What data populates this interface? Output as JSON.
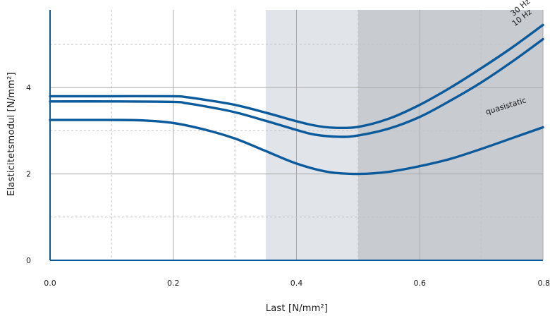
{
  "chart_data": {
    "type": "line",
    "title": "",
    "xlabel": "Last [N/mm²]",
    "ylabel": "Elasticitetsmodul [N/mm²]",
    "xlim": [
      0,
      0.8
    ],
    "ylim": [
      0,
      5.8
    ],
    "x_ticks": [
      0.0,
      0.2,
      0.4,
      0.6,
      0.8
    ],
    "x_tick_labels": [
      "0.0",
      "0.2",
      "0.4",
      "0.6",
      "0.8"
    ],
    "y_ticks": [
      0,
      2,
      4
    ],
    "y_tick_labels": [
      "0",
      "2",
      "4"
    ],
    "minor_x_gridlines": [
      0.1,
      0.3,
      0.5,
      0.7
    ],
    "minor_y_gridlines": [
      1,
      3,
      5
    ],
    "grid": true,
    "shaded_regions": [
      {
        "x_range": [
          0.35,
          0.5
        ],
        "color": "#e1e5ea"
      },
      {
        "x_range": [
          0.5,
          0.8
        ],
        "color": "#c8ccd1"
      }
    ],
    "series": [
      {
        "name": "30 Hz",
        "color": "#0b5a9c",
        "x": [
          0.0,
          0.1,
          0.2,
          0.22,
          0.25,
          0.3,
          0.35,
          0.4,
          0.43,
          0.46,
          0.5,
          0.55,
          0.6,
          0.65,
          0.7,
          0.75,
          0.8
        ],
        "y": [
          3.8,
          3.8,
          3.8,
          3.78,
          3.72,
          3.6,
          3.42,
          3.22,
          3.12,
          3.07,
          3.09,
          3.28,
          3.6,
          4.0,
          4.45,
          4.93,
          5.45
        ]
      },
      {
        "name": "10 Hz",
        "color": "#0b5a9c",
        "x": [
          0.0,
          0.1,
          0.2,
          0.22,
          0.25,
          0.3,
          0.35,
          0.4,
          0.43,
          0.47,
          0.5,
          0.55,
          0.6,
          0.65,
          0.7,
          0.75,
          0.8
        ],
        "y": [
          3.68,
          3.68,
          3.67,
          3.64,
          3.57,
          3.43,
          3.23,
          3.02,
          2.91,
          2.86,
          2.89,
          3.05,
          3.32,
          3.7,
          4.12,
          4.6,
          5.12
        ]
      },
      {
        "name": "quasistatic",
        "color": "#0b5a9c",
        "x": [
          0.0,
          0.1,
          0.15,
          0.2,
          0.25,
          0.3,
          0.35,
          0.4,
          0.45,
          0.5,
          0.55,
          0.6,
          0.65,
          0.7,
          0.75,
          0.8
        ],
        "y": [
          3.25,
          3.25,
          3.24,
          3.18,
          3.03,
          2.82,
          2.53,
          2.24,
          2.05,
          2.0,
          2.05,
          2.18,
          2.35,
          2.58,
          2.83,
          3.08
        ]
      }
    ]
  }
}
